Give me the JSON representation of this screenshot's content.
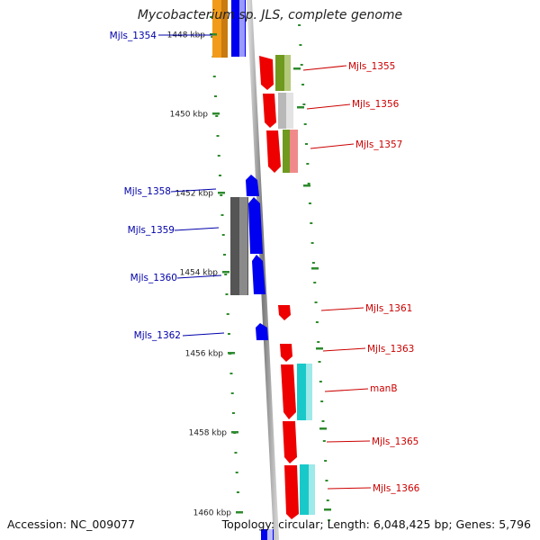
{
  "title": "Mycobacterium sp. JLS, complete genome",
  "footer": {
    "accession": "Accession: NC_009077",
    "summary": "Topology: circular; Length: 6,048,425 bp; Genes: 5,796"
  },
  "colors": {
    "backbone": "#8a8a8a",
    "tick": "#2e8b2e",
    "label_forward": "#0000aa",
    "label_reverse": "#cc0000"
  },
  "ticks": [
    {
      "label": "1448 kbp"
    },
    {
      "label": "1450 kbp"
    },
    {
      "label": "1452 kbp"
    },
    {
      "label": "1454 kbp"
    },
    {
      "label": "1456 kbp"
    },
    {
      "label": "1458 kbp"
    },
    {
      "label": "1460 kbp"
    }
  ],
  "genes": [
    {
      "name": "Mjls_1354",
      "strand": "forward"
    },
    {
      "name": "Mjls_1355",
      "strand": "reverse"
    },
    {
      "name": "Mjls_1356",
      "strand": "reverse"
    },
    {
      "name": "Mjls_1357",
      "strand": "reverse"
    },
    {
      "name": "Mjls_1358",
      "strand": "forward"
    },
    {
      "name": "Mjls_1359",
      "strand": "forward"
    },
    {
      "name": "Mjls_1360",
      "strand": "forward"
    },
    {
      "name": "Mjls_1361",
      "strand": "reverse"
    },
    {
      "name": "Mjls_1362",
      "strand": "forward"
    },
    {
      "name": "Mjls_1363",
      "strand": "reverse"
    },
    {
      "name": "manB",
      "strand": "reverse"
    },
    {
      "name": "Mjls_1365",
      "strand": "reverse"
    },
    {
      "name": "Mjls_1366",
      "strand": "reverse"
    }
  ]
}
